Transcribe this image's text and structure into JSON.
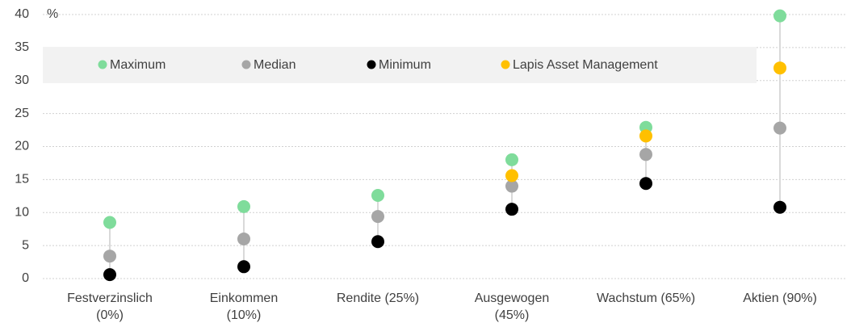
{
  "chart_data": {
    "type": "dot",
    "y_unit": "%",
    "categories": [
      "Festverzinslich\n(0%)",
      "Einkommen\n(10%)",
      "Rendite (25%)",
      "Ausgewogen\n(45%)",
      "Wachstum (65%)",
      "Aktien (90%)"
    ],
    "series": [
      {
        "name": "Maximum",
        "color": "#7fdc9b",
        "values": [
          8.5,
          10.9,
          12.6,
          18.0,
          22.9,
          39.8
        ]
      },
      {
        "name": "Median",
        "color": "#a6a6a6",
        "values": [
          3.4,
          6.0,
          9.4,
          14.0,
          18.8,
          22.8
        ]
      },
      {
        "name": "Minimum",
        "color": "#000000",
        "values": [
          0.6,
          1.8,
          5.6,
          10.5,
          14.4,
          10.8
        ]
      },
      {
        "name": "Lapis Asset Management",
        "color": "#ffc000",
        "values": [
          null,
          null,
          null,
          15.6,
          21.6,
          31.9
        ]
      }
    ],
    "ylim": [
      0,
      40
    ],
    "yticks": [
      0,
      5,
      10,
      15,
      20,
      25,
      30,
      35,
      40
    ],
    "grid": true,
    "legend": "top"
  }
}
